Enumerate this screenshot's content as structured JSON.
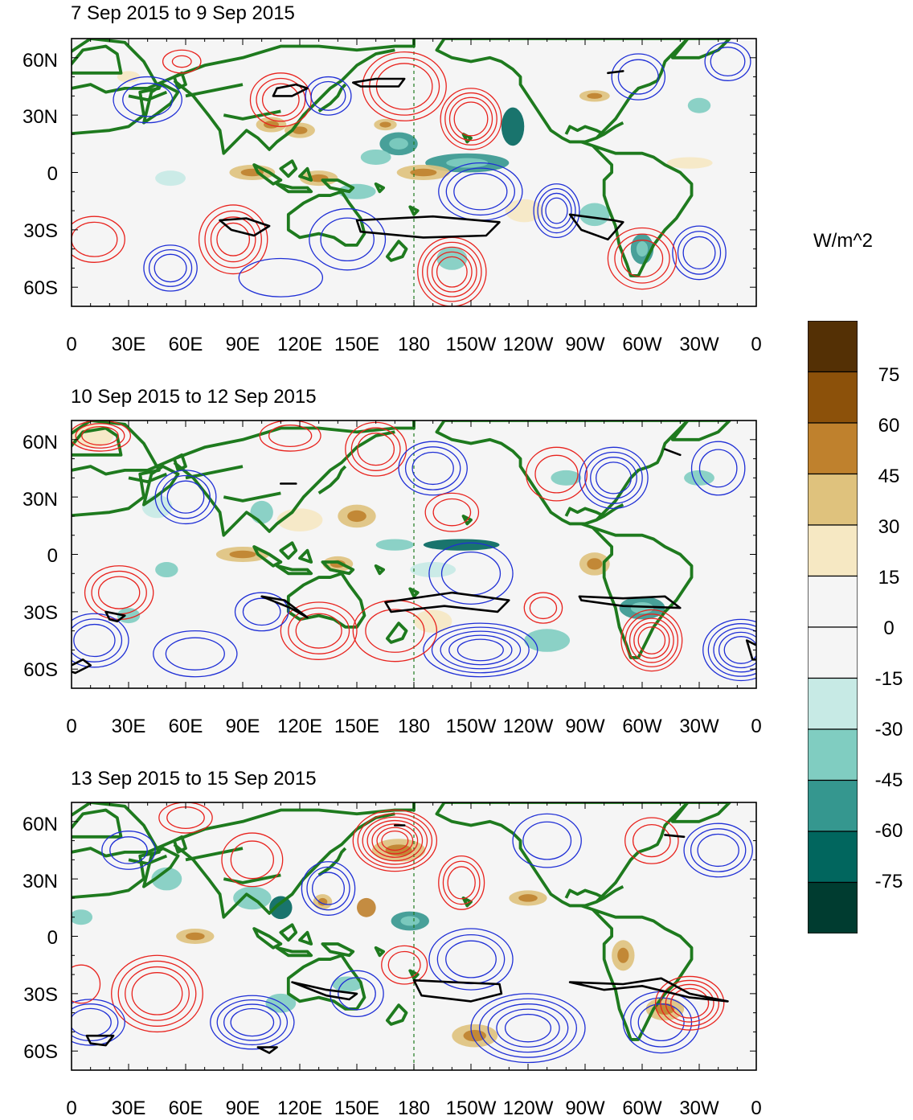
{
  "colorbar": {
    "unit": "W/m^2",
    "labels": [
      "75",
      "60",
      "45",
      "30",
      "15",
      "0",
      "-15",
      "-30",
      "-45",
      "-60",
      "-75"
    ],
    "colors": [
      "#543005",
      "#8c510a",
      "#bf812d",
      "#dfc27d",
      "#f6e8c3",
      "#f5f5f5",
      "#f5f5f5",
      "#c7eae5",
      "#80cdc1",
      "#35978f",
      "#01665e",
      "#003c30"
    ]
  },
  "axes": {
    "lat_labels": [
      "60N",
      "30N",
      "0",
      "30S",
      "60S"
    ],
    "lon_labels": [
      "0",
      "30E",
      "60E",
      "90E",
      "120E",
      "150E",
      "180",
      "150W",
      "120W",
      "90W",
      "60W",
      "30W",
      "0"
    ]
  },
  "colors": {
    "coast": "#1e7a1e",
    "positive_contour": "#e8231e",
    "negative_contour": "#1f2fd6",
    "bold_contour": "#000000",
    "dateline": "#1e7a1e"
  },
  "panels": [
    {
      "title": "7 Sep 2015 to 9 Sep 2015"
    },
    {
      "title": "10 Sep 2015 to 12 Sep 2015"
    },
    {
      "title": "13 Sep 2015 to 15 Sep 2015"
    }
  ]
}
